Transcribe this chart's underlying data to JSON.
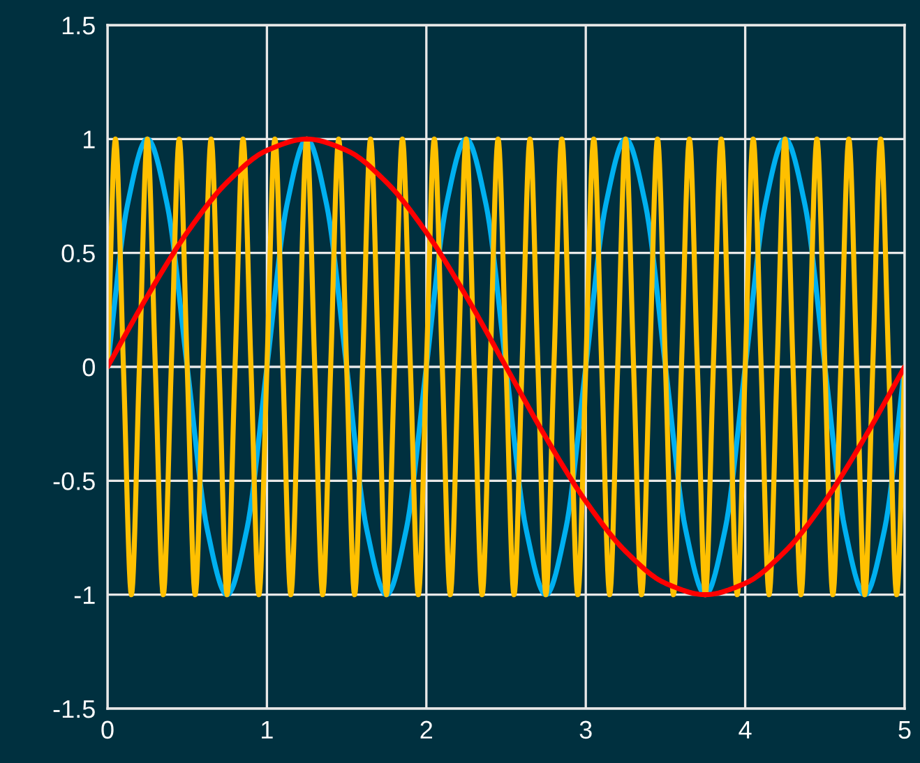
{
  "chart_data": {
    "type": "line",
    "xlim": [
      0,
      5
    ],
    "xticks": [
      0,
      1,
      2,
      3,
      4,
      5
    ],
    "ylim": [
      -1.5,
      1.5
    ],
    "yticks": [
      -1.5,
      -1,
      -0.5,
      0,
      0.5,
      1,
      1.5
    ],
    "grid": true,
    "line_style": "solid",
    "series": [
      {
        "color": "#00b0f0",
        "x": [
          0,
          0.125,
          0.25,
          0.375,
          0.5,
          0.625,
          0.75,
          0.875,
          1,
          1.125,
          1.25,
          1.375,
          1.5,
          1.625,
          1.75,
          1.875,
          2,
          2.125,
          2.25,
          2.375,
          2.5,
          2.625,
          2.75,
          2.875,
          3,
          3.125,
          3.25,
          3.375,
          3.5,
          3.625,
          3.75,
          3.875,
          4,
          4.125,
          4.25,
          4.375,
          4.5,
          4.625,
          4.75,
          4.875,
          5
        ],
        "values": [
          0,
          0.71,
          1,
          0.71,
          0,
          -0.71,
          -1,
          -0.71,
          0,
          0.71,
          1,
          0.71,
          0,
          -0.71,
          -1,
          -0.71,
          0,
          0.71,
          1,
          0.71,
          0,
          -0.71,
          -1,
          -0.71,
          0,
          0.71,
          1,
          0.71,
          0,
          -0.71,
          -1,
          -0.71,
          0,
          0.71,
          1,
          0.71,
          0,
          -0.71,
          -1,
          -0.71,
          0
        ]
      },
      {
        "color": "#ffc000",
        "x": [
          0,
          0.05,
          0.1,
          0.15,
          0.2,
          0.25,
          0.3,
          0.35,
          0.4,
          0.45,
          0.5,
          0.55,
          0.6,
          0.65,
          0.7,
          0.75,
          0.8,
          0.85,
          0.9,
          0.95,
          1,
          1.05,
          1.1,
          1.15,
          1.2,
          1.25,
          1.3,
          1.35,
          1.4,
          1.45,
          1.5,
          1.55,
          1.6,
          1.65,
          1.7,
          1.75,
          1.8,
          1.85,
          1.9,
          1.95,
          2,
          2.05,
          2.1,
          2.15,
          2.2,
          2.25,
          2.3,
          2.35,
          2.4,
          2.45,
          2.5,
          2.55,
          2.6,
          2.65,
          2.7,
          2.75,
          2.8,
          2.85,
          2.9,
          2.95,
          3,
          3.05,
          3.1,
          3.15,
          3.2,
          3.25,
          3.3,
          3.35,
          3.4,
          3.45,
          3.5,
          3.55,
          3.6,
          3.65,
          3.7,
          3.75,
          3.8,
          3.85,
          3.9,
          3.95,
          4,
          4.05,
          4.1,
          4.15,
          4.2,
          4.25,
          4.3,
          4.35,
          4.4,
          4.45,
          4.5,
          4.55,
          4.6,
          4.65,
          4.7,
          4.75,
          4.8,
          4.85,
          4.9,
          4.95,
          5
        ],
        "values": [
          0,
          1,
          0,
          -1,
          0,
          1,
          0,
          -1,
          0,
          1,
          0,
          -1,
          0,
          1,
          0,
          -1,
          0,
          1,
          0,
          -1,
          0,
          1,
          0,
          -1,
          0,
          1,
          0,
          -1,
          0,
          1,
          0,
          -1,
          0,
          1,
          0,
          -1,
          0,
          1,
          0,
          -1,
          0,
          1,
          0,
          -1,
          0,
          1,
          0,
          -1,
          0,
          1,
          0,
          -1,
          0,
          1,
          0,
          -1,
          0,
          1,
          0,
          -1,
          0,
          1,
          0,
          -1,
          0,
          1,
          0,
          -1,
          0,
          1,
          0,
          -1,
          0,
          1,
          0,
          -1,
          0,
          1,
          0,
          -1,
          0,
          1,
          0,
          -1,
          0,
          1,
          0,
          -1,
          0,
          1,
          0,
          -1,
          0,
          1,
          0,
          -1,
          0,
          1,
          0,
          -1,
          0
        ]
      },
      {
        "color": "#ff0000",
        "x": [
          0,
          0.25,
          0.5,
          0.75,
          1,
          1.25,
          1.5,
          1.75,
          2,
          2.25,
          2.5,
          2.75,
          3,
          3.25,
          3.5,
          3.75,
          4,
          4.25,
          4.5,
          4.75,
          5
        ],
        "values": [
          0,
          0.31,
          0.59,
          0.81,
          0.95,
          1,
          0.95,
          0.81,
          0.59,
          0.31,
          0,
          -0.31,
          -0.59,
          -0.81,
          -0.95,
          -1,
          -0.95,
          -0.81,
          -0.59,
          -0.31,
          0
        ]
      }
    ]
  }
}
